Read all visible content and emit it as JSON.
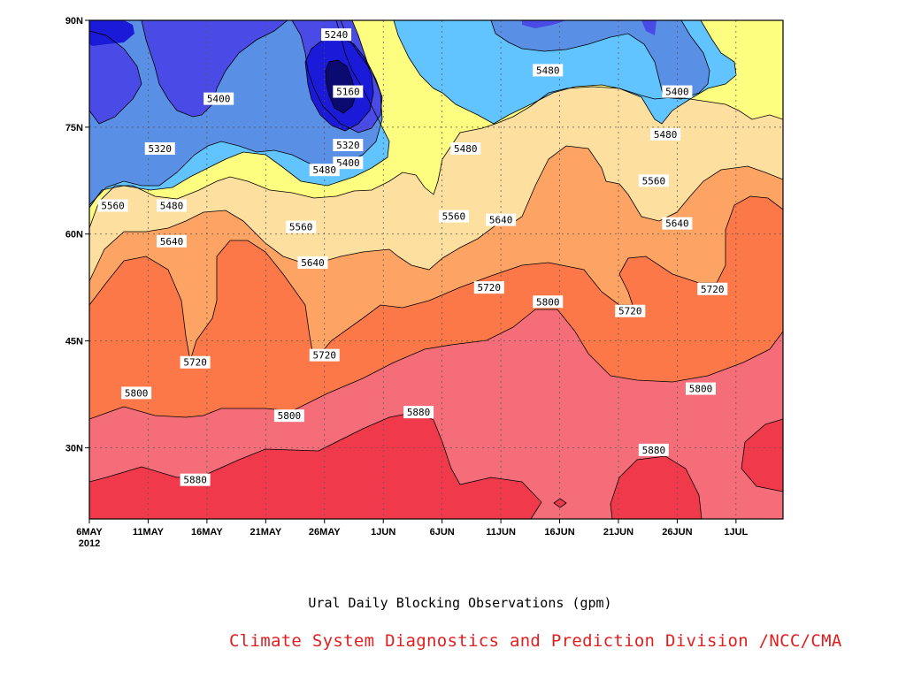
{
  "chart_data": {
    "type": "contour",
    "title": "Ural Daily Blocking Observations (gpm)",
    "x_ticks": [
      "6MAY",
      "11MAY",
      "16MAY",
      "21MAY",
      "26MAY",
      "1JUN",
      "6JUN",
      "11JUN",
      "16JUN",
      "21JUN",
      "26JUN",
      "1JUL"
    ],
    "x_year_label": "2012",
    "y_ticks": [
      "90N",
      "75N",
      "60N",
      "45N",
      "30N"
    ],
    "y_tick_values": [
      90,
      75,
      60,
      45,
      30
    ],
    "xlim": [
      "2012-05-06",
      "2012-07-04"
    ],
    "ylim": [
      20,
      90
    ],
    "grid": true,
    "levels": [
      5160,
      5240,
      5320,
      5400,
      5480,
      5560,
      5640,
      5720,
      5800,
      5880
    ],
    "level_colors": [
      "#0a0a70",
      "#1a1ad8",
      "#4a4ae6",
      "#5a8fe6",
      "#62c4ff",
      "#fdfd80",
      "#fde0a0",
      "#fda464",
      "#fd7848",
      "#f56d78",
      "#f03a4c"
    ],
    "contour_labels": [
      {
        "value": "5240",
        "date": "2012-05-27",
        "lat": 88
      },
      {
        "value": "5160",
        "date": "2012-05-28",
        "lat": 80
      },
      {
        "value": "5400",
        "date": "2012-05-17",
        "lat": 79
      },
      {
        "value": "5320",
        "date": "2012-05-12",
        "lat": 72
      },
      {
        "value": "5320",
        "date": "2012-05-28",
        "lat": 72.5
      },
      {
        "value": "5400",
        "date": "2012-05-28",
        "lat": 70
      },
      {
        "value": "5480",
        "date": "2012-05-26",
        "lat": 69
      },
      {
        "value": "5480",
        "date": "2012-06-14",
        "lat": 83
      },
      {
        "value": "5480",
        "date": "2012-06-07",
        "lat": 72
      },
      {
        "value": "5400",
        "date": "2012-06-25",
        "lat": 80
      },
      {
        "value": "5480",
        "date": "2012-06-24",
        "lat": 74
      },
      {
        "value": "5560",
        "date": "2012-05-08",
        "lat": 64
      },
      {
        "value": "5480",
        "date": "2012-05-13",
        "lat": 64
      },
      {
        "value": "5560",
        "date": "2012-05-24",
        "lat": 61
      },
      {
        "value": "5560",
        "date": "2012-06-06",
        "lat": 62.5
      },
      {
        "value": "5640",
        "date": "2012-06-10",
        "lat": 62
      },
      {
        "value": "5560",
        "date": "2012-06-23",
        "lat": 67.5
      },
      {
        "value": "5640",
        "date": "2012-06-25",
        "lat": 61.5
      },
      {
        "value": "5640",
        "date": "2012-05-13",
        "lat": 59
      },
      {
        "value": "5640",
        "date": "2012-05-25",
        "lat": 56
      },
      {
        "value": "5720",
        "date": "2012-06-09",
        "lat": 52.5
      },
      {
        "value": "5720",
        "date": "2012-06-28",
        "lat": 52.3
      },
      {
        "value": "5800",
        "date": "2012-06-14",
        "lat": 50.5
      },
      {
        "value": "5720",
        "date": "2012-06-21",
        "lat": 49.2
      },
      {
        "value": "5720",
        "date": "2012-05-15",
        "lat": 42
      },
      {
        "value": "5720",
        "date": "2012-05-26",
        "lat": 43
      },
      {
        "value": "5800",
        "date": "2012-05-10",
        "lat": 37.7
      },
      {
        "value": "5800",
        "date": "2012-05-23",
        "lat": 34.5
      },
      {
        "value": "5880",
        "date": "2012-06-03",
        "lat": 35
      },
      {
        "value": "5800",
        "date": "2012-06-27",
        "lat": 38.3
      },
      {
        "value": "5880",
        "date": "2012-05-15",
        "lat": 25.5
      },
      {
        "value": "5880",
        "date": "2012-06-23",
        "lat": 29.7
      }
    ]
  },
  "caption": "Ural Daily Blocking Observations (gpm)",
  "credit": "Climate System Diagnostics and Prediction Division /NCC/CMA"
}
